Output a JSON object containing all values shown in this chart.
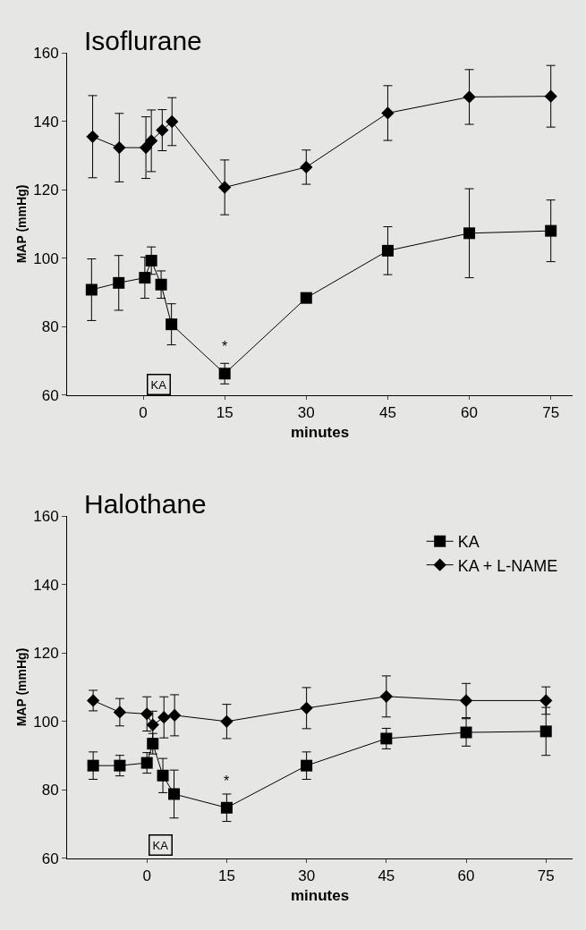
{
  "chart_data": [
    {
      "type": "line",
      "title": "Isoflurane",
      "xlabel": "minutes",
      "ylabel": "MAP (mmHg)",
      "xlim": [
        -14,
        79
      ],
      "xticks": [
        0,
        15,
        30,
        45,
        60,
        75
      ],
      "ylim": [
        60,
        160
      ],
      "yticks": [
        60,
        80,
        100,
        120,
        140,
        160
      ],
      "grid": false,
      "legend": false,
      "series": [
        {
          "color": "#000000",
          "marker": "square",
          "x": [
            -9.5,
            -4.5,
            0.3,
            1.5,
            3.3,
            5.2,
            15,
            30,
            45,
            60,
            75
          ],
          "values": [
            90.8,
            92.8,
            94.3,
            99.3,
            92.3,
            80.7,
            66.3,
            88.4,
            102.2,
            107.3,
            108.0
          ],
          "errors": [
            9,
            8,
            6,
            4,
            4,
            6,
            3,
            null,
            7,
            13,
            9
          ]
        },
        {
          "color": "#000000",
          "marker": "diamond",
          "x": [
            -9.3,
            -4.4,
            0.5,
            1.5,
            3.5,
            5.3,
            15,
            30,
            45,
            60,
            75
          ],
          "values": [
            135.5,
            132.3,
            132.3,
            134.3,
            137.4,
            139.9,
            120.7,
            126.6,
            142.4,
            147.1,
            147.3
          ],
          "errors": [
            12,
            10,
            9,
            9,
            6,
            7,
            8,
            5,
            8,
            8,
            9
          ]
        }
      ],
      "annotations": [
        {
          "text": "*",
          "x": 15,
          "y": 66.3
        },
        {
          "text": "KA",
          "x": 2.8,
          "y": 63
        }
      ]
    },
    {
      "type": "line",
      "title": "Halothane",
      "xlabel": "minutes",
      "ylabel": "MAP (mmHg)",
      "xlim": [
        -15,
        80
      ],
      "xticks": [
        0,
        15,
        30,
        45,
        60,
        75
      ],
      "ylim": [
        60,
        160
      ],
      "yticks": [
        60,
        80,
        100,
        120,
        140,
        160
      ],
      "grid": false,
      "legend": "top right",
      "series": [
        {
          "name": "KA",
          "color": "#000000",
          "marker": "square",
          "x": [
            -10.1,
            -5.1,
            0,
            1.1,
            3.0,
            5.1,
            15,
            30,
            45,
            60,
            75
          ],
          "values": [
            87.1,
            87.1,
            87.9,
            93.5,
            84.2,
            78.8,
            74.8,
            87.1,
            95.0,
            96.8,
            97.1
          ],
          "errors": [
            4,
            3,
            3,
            3,
            5,
            7,
            4,
            4,
            3,
            4,
            7
          ]
        },
        {
          "name": "KA + L-NAME",
          "color": "#000000",
          "marker": "diamond",
          "x": [
            -10.1,
            -5.1,
            0,
            1.1,
            3.2,
            5.2,
            15,
            30,
            45,
            60,
            75
          ],
          "values": [
            106.1,
            102.7,
            102.2,
            99.0,
            101.2,
            101.8,
            100.0,
            103.9,
            107.3,
            106.1,
            106.1
          ],
          "errors": [
            3,
            4,
            5,
            4,
            6,
            6,
            5,
            6,
            6,
            5,
            4
          ]
        }
      ],
      "annotations": [
        {
          "text": "*",
          "x": 15,
          "y": 74.8
        },
        {
          "text": "KA",
          "x": 2.6,
          "y": 64
        }
      ]
    }
  ]
}
